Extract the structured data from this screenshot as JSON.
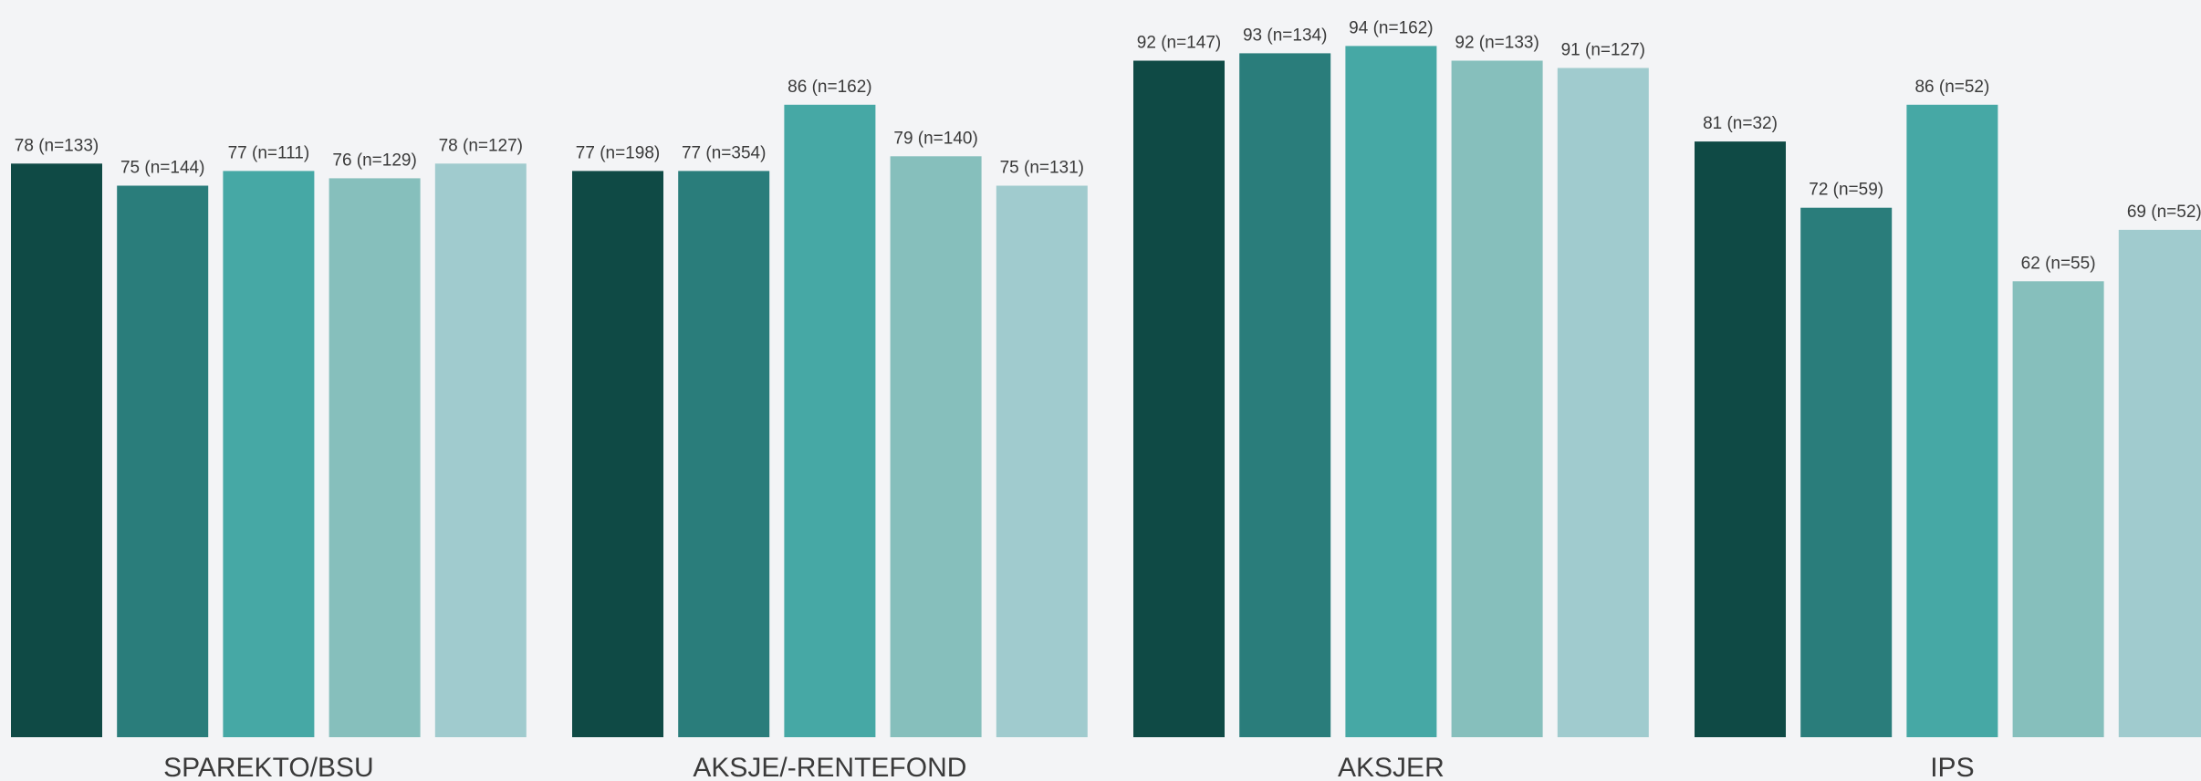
{
  "chart_data": {
    "type": "bar",
    "title": "",
    "xlabel": "",
    "ylabel": "",
    "ylim": [
      0,
      100
    ],
    "grid": false,
    "legend": "none",
    "categories": [
      "SPAREKTO/BSU",
      "AKSJE/-RENTEFOND",
      "AKSJER",
      "IPS"
    ],
    "series_colors": [
      "#0f4a45",
      "#2a7d7b",
      "#46a8a5",
      "#86bfbc",
      "#a0cbce"
    ],
    "series": [
      {
        "values": [
          78,
          77,
          92,
          81
        ],
        "labels": [
          "78 (n=133)",
          "77 (n=198)",
          "92 (n=147)",
          "81 (n=32)"
        ]
      },
      {
        "values": [
          75,
          77,
          93,
          72
        ],
        "labels": [
          "75 (n=144)",
          "77 (n=354)",
          "93 (n=134)",
          "72 (n=59)"
        ]
      },
      {
        "values": [
          77,
          86,
          94,
          86
        ],
        "labels": [
          "77 (n=111)",
          "86 (n=162)",
          "94 (n=162)",
          "86 (n=52)"
        ]
      },
      {
        "values": [
          76,
          79,
          92,
          62
        ],
        "labels": [
          "76 (n=129)",
          "79 (n=140)",
          "92 (n=133)",
          "62 (n=55)"
        ]
      },
      {
        "values": [
          78,
          75,
          91,
          69
        ],
        "labels": [
          "78 (n=127)",
          "75 (n=131)",
          "91 (n=127)",
          "69 (n=52)"
        ]
      }
    ]
  }
}
